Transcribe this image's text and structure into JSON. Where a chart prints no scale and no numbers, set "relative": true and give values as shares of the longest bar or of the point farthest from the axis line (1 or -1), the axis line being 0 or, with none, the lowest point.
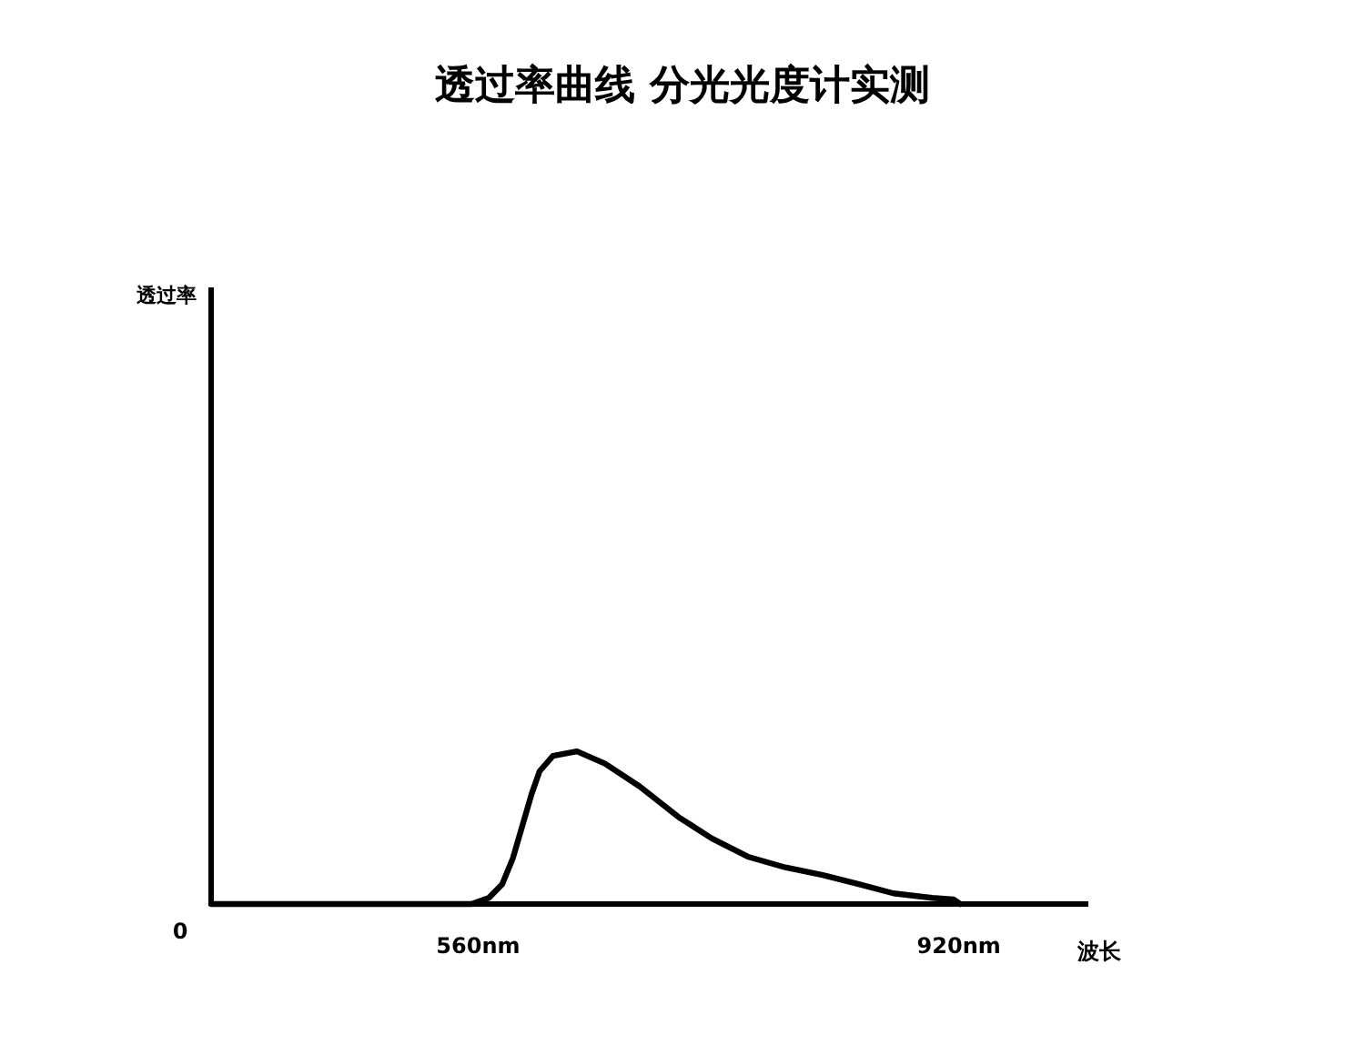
{
  "chart_data": {
    "type": "line",
    "title": "透过率曲线 分光光度计实测",
    "xlabel": "波长",
    "relative": true,
    "annotations": [
      "透过率",
      "0"
    ],
    "xlim": [
      360,
      1017
    ],
    "xticks": [
      {
        "value": 560,
        "label": "560nm"
      },
      {
        "value": 920,
        "label": "920nm"
      }
    ],
    "grid": false,
    "marker": "none",
    "line_style": "solid",
    "series": [
      {
        "color": "#000000",
        "x": [
          360,
          555,
          568,
          578,
          586,
          594,
          600,
          606,
          616,
          634,
          655,
          681,
          710,
          735,
          762,
          790,
          818,
          845,
          871,
          900,
          916,
          921
        ],
        "values": [
          0,
          0,
          0.04,
          0.13,
          0.3,
          0.54,
          0.72,
          0.87,
          0.97,
          1,
          0.92,
          0.77,
          0.57,
          0.43,
          0.31,
          0.24,
          0.19,
          0.13,
          0.07,
          0.04,
          0.03,
          0
        ]
      }
    ]
  }
}
